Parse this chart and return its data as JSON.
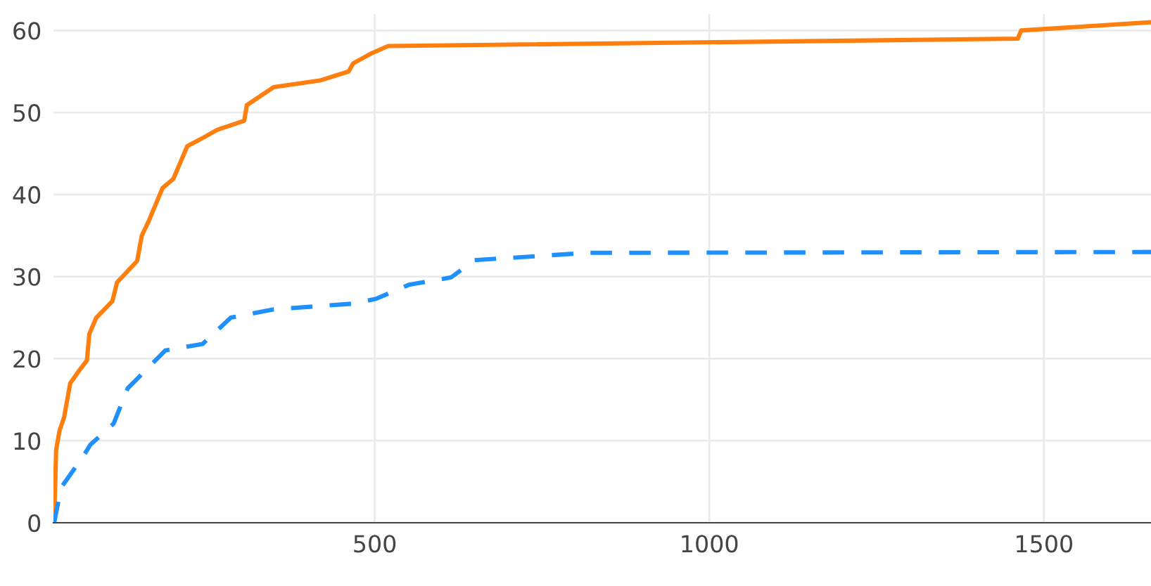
{
  "chart_data": {
    "type": "line",
    "xlim": [
      20,
      1660
    ],
    "ylim": [
      0,
      62
    ],
    "xticks": [
      500,
      1000,
      1500
    ],
    "yticks": [
      0,
      10,
      20,
      30,
      40,
      50,
      60
    ],
    "grid": true,
    "series": [
      {
        "color": "#ff7f0e",
        "line_style": "solid",
        "x": [
          21,
          24,
          29,
          36,
          45,
          57,
          70,
          73.5,
          84,
          108,
          115,
          145,
          152,
          162,
          183,
          199,
          220,
          243,
          265,
          305,
          309,
          349,
          418,
          461,
          468,
          495,
          520,
          1461,
          1466,
          1660
        ],
        "values": [
          0,
          8.9,
          11.2,
          12.9,
          17,
          18.4,
          19.8,
          23,
          25,
          27,
          29.3,
          31.9,
          35,
          36.7,
          40.8,
          41.9,
          45.9,
          46.9,
          47.9,
          49,
          50.9,
          53.1,
          53.9,
          55,
          56,
          57.2,
          58.1,
          59,
          60,
          61
        ]
      },
      {
        "color": "#1e90ff",
        "line_style": "dashed",
        "x": [
          21,
          31.5,
          66,
          75,
          110,
          131,
          152,
          187,
          243,
          285,
          348,
          467,
          502,
          551,
          572,
          614,
          649,
          817,
          1660
        ],
        "values": [
          0,
          4.3,
          8.3,
          9.5,
          12.1,
          16.4,
          18.1,
          21,
          21.8,
          25,
          26,
          26.7,
          27.3,
          29,
          29.3,
          29.9,
          32,
          32.9,
          33
        ]
      }
    ]
  }
}
